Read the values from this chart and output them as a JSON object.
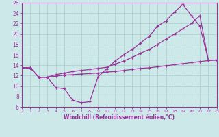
{
  "xlabel": "Windchill (Refroidissement éolien,°C)",
  "bg_color": "#cce8e8",
  "grid_color": "#aacccc",
  "line_color": "#993399",
  "x_min": 0,
  "x_max": 23,
  "y_min": 6,
  "y_max": 26,
  "line1_x": [
    0,
    1,
    2,
    3,
    4,
    5,
    6,
    7,
    8,
    9,
    10,
    11,
    12,
    13,
    14,
    15,
    16,
    17,
    18,
    19,
    20,
    21,
    22,
    23
  ],
  "line1_y": [
    13.5,
    13.5,
    11.7,
    11.7,
    9.7,
    9.5,
    7.3,
    6.8,
    7.0,
    11.8,
    13.3,
    14.8,
    16.0,
    17.0,
    18.3,
    19.5,
    21.5,
    22.5,
    24.2,
    25.7,
    23.5,
    21.5,
    15.0,
    15.0
  ],
  "line2_x": [
    0,
    1,
    2,
    3,
    4,
    5,
    6,
    7,
    8,
    9,
    10,
    11,
    12,
    13,
    14,
    15,
    16,
    17,
    18,
    19,
    20,
    21,
    22,
    23
  ],
  "line2_y": [
    13.5,
    13.5,
    11.7,
    11.7,
    12.2,
    12.5,
    12.8,
    13.0,
    13.2,
    13.4,
    13.6,
    14.2,
    14.8,
    15.5,
    16.3,
    17.0,
    18.0,
    19.0,
    20.0,
    21.0,
    22.0,
    23.5,
    15.0,
    15.0
  ],
  "line3_x": [
    0,
    1,
    2,
    3,
    4,
    5,
    6,
    7,
    8,
    9,
    10,
    11,
    12,
    13,
    14,
    15,
    16,
    17,
    18,
    19,
    20,
    21,
    22,
    23
  ],
  "line3_y": [
    13.5,
    13.5,
    11.7,
    11.7,
    11.9,
    12.1,
    12.2,
    12.3,
    12.4,
    12.5,
    12.7,
    12.8,
    13.0,
    13.2,
    13.4,
    13.5,
    13.7,
    13.9,
    14.1,
    14.3,
    14.5,
    14.7,
    14.9,
    15.0
  ]
}
